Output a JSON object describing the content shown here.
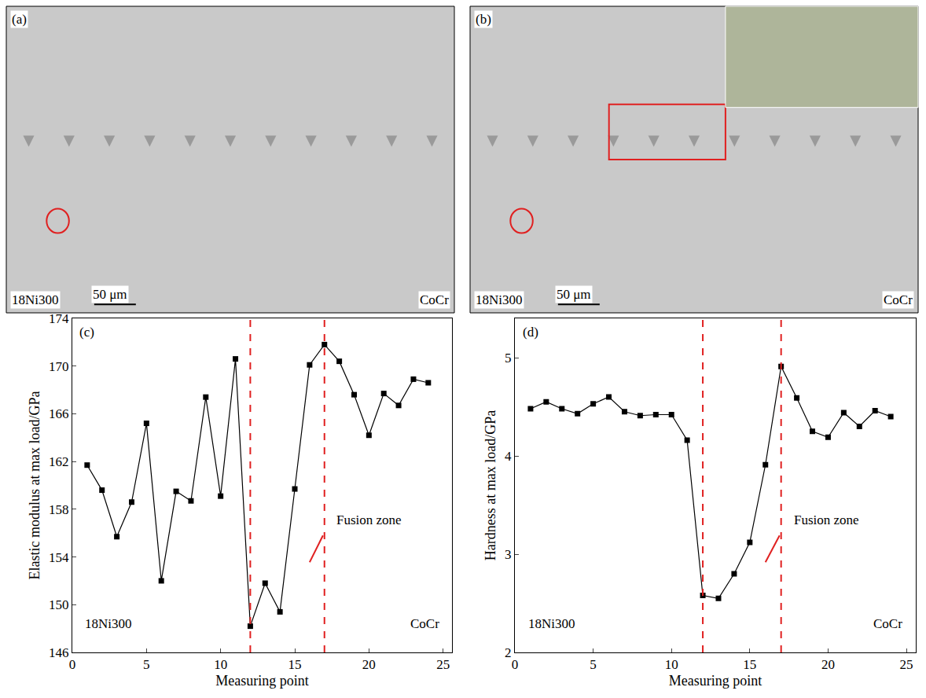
{
  "chart_data": [
    {
      "type": "image",
      "panel": "(a)",
      "annotations": [
        "18Ni300",
        "50 μm",
        "CoCr"
      ]
    },
    {
      "type": "image",
      "panel": "(b)",
      "annotations": [
        "18Ni300",
        "50 μm",
        "CoCr"
      ]
    },
    {
      "type": "line",
      "panel": "(c)",
      "x": [
        1,
        2,
        3,
        4,
        5,
        6,
        7,
        8,
        9,
        10,
        11,
        12,
        13,
        14,
        15,
        16,
        17,
        18,
        19,
        20,
        21,
        22,
        23,
        24
      ],
      "values": [
        161.7,
        159.6,
        155.7,
        158.6,
        165.2,
        152.0,
        159.5,
        158.7,
        167.4,
        159.1,
        170.6,
        148.2,
        151.8,
        149.4,
        159.7,
        170.1,
        171.8,
        170.4,
        167.6,
        164.2,
        167.7,
        166.7,
        168.9,
        168.6
      ],
      "xlabel": "Measuring point",
      "ylabel": "Elastic modulus at max load/GPa",
      "xlim": [
        0,
        25.6
      ],
      "xticks": [
        0,
        5,
        10,
        15,
        20,
        25
      ],
      "ylim": [
        146,
        174
      ],
      "yticks": [
        146,
        150,
        154,
        158,
        162,
        166,
        170,
        174
      ],
      "color": "#000000",
      "marker": "square",
      "line_style": "solid",
      "reference_lines": [
        12,
        17
      ],
      "annotations": [
        "Fusion zone",
        "18Ni300",
        "CoCr"
      ]
    },
    {
      "type": "line",
      "panel": "(d)",
      "x": [
        1,
        2,
        3,
        4,
        5,
        6,
        7,
        8,
        9,
        10,
        11,
        12,
        13,
        14,
        15,
        16,
        17,
        18,
        19,
        20,
        21,
        22,
        23,
        24
      ],
      "values": [
        4.48,
        4.55,
        4.48,
        4.43,
        4.53,
        4.6,
        4.45,
        4.41,
        4.42,
        4.42,
        4.16,
        2.58,
        2.55,
        2.8,
        3.12,
        3.91,
        4.91,
        4.59,
        4.25,
        4.19,
        4.44,
        4.3,
        4.46,
        4.4
      ],
      "xlabel": "Measuring point",
      "ylabel": "Hardness at max load/GPa",
      "xlim": [
        0,
        25.6
      ],
      "xticks": [
        0,
        5,
        10,
        15,
        20,
        25
      ],
      "ylim": [
        2,
        5.4
      ],
      "yticks": [
        2,
        3,
        4,
        5
      ],
      "color": "#000000",
      "marker": "square",
      "line_style": "solid",
      "reference_lines": [
        12,
        17
      ],
      "annotations": [
        "Fusion zone",
        "18Ni300",
        "CoCr"
      ]
    }
  ]
}
